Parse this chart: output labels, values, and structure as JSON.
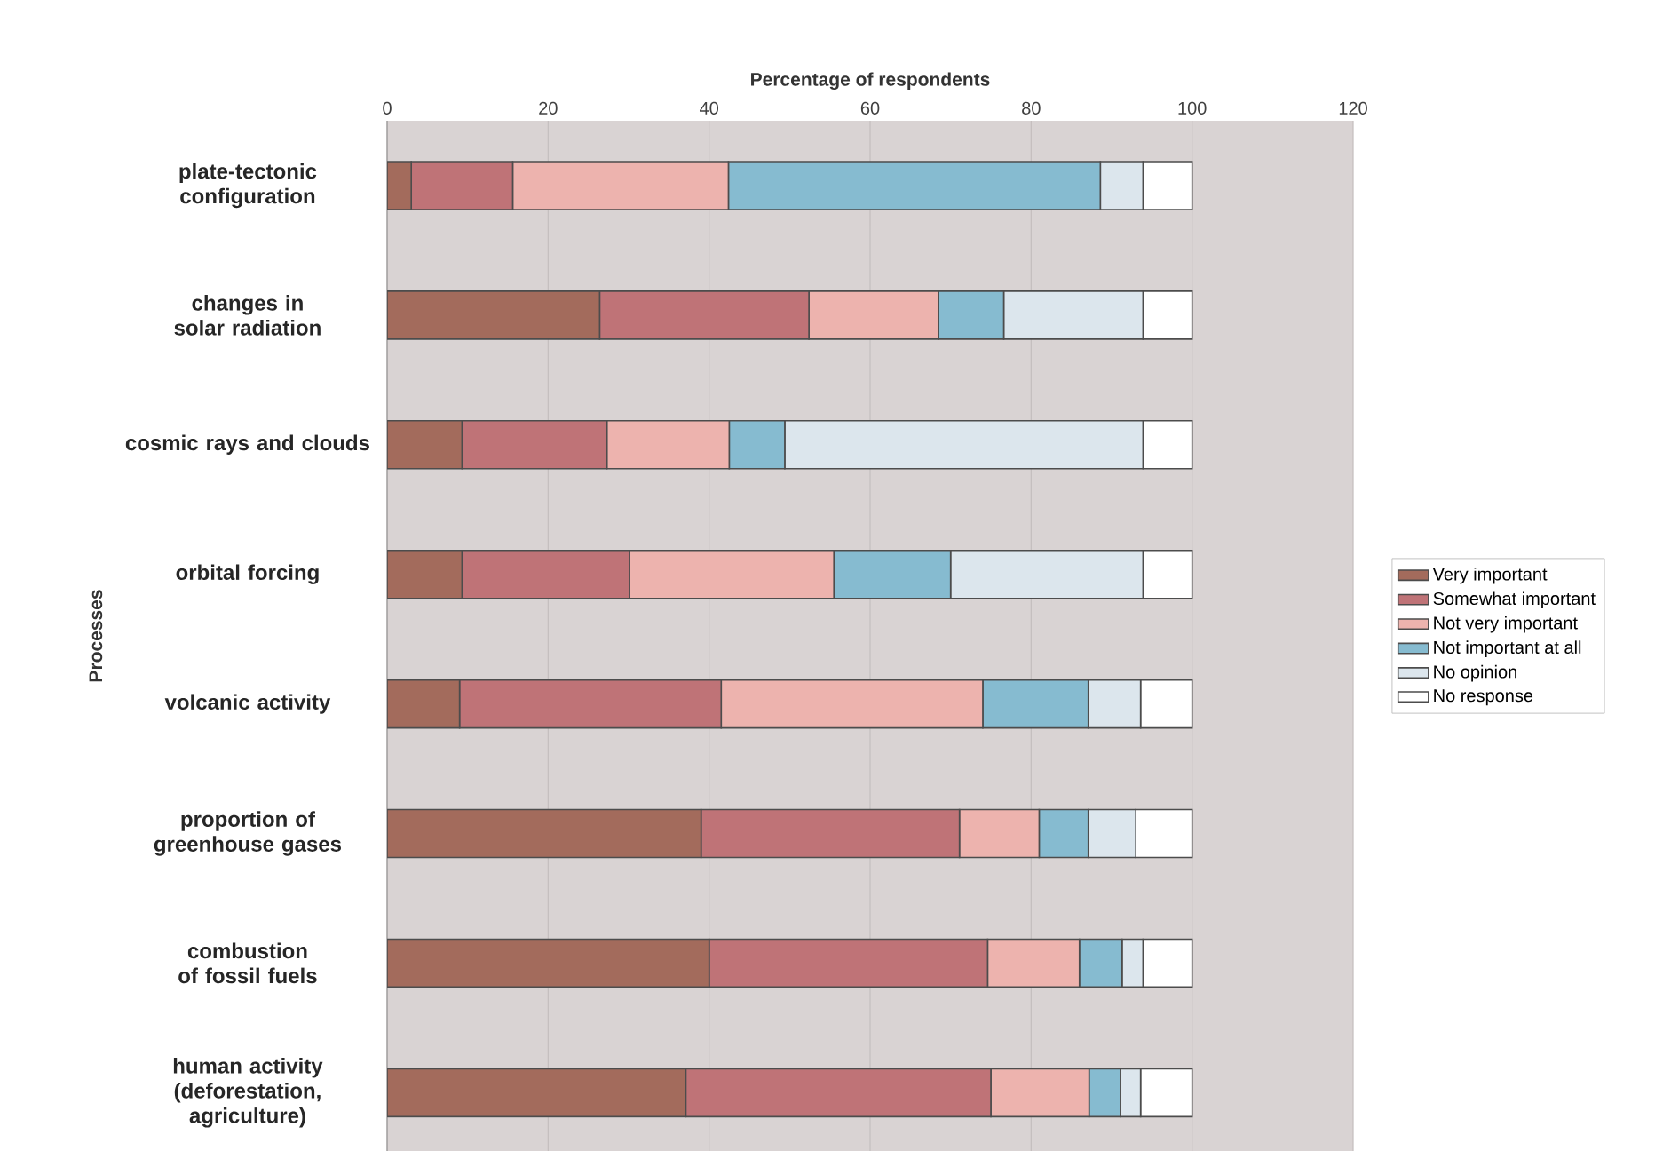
{
  "chart_data": {
    "type": "bar",
    "orientation": "horizontal",
    "stacked": true,
    "xlabel": "Percentage of respondents",
    "ylabel": "Processes",
    "categories": [
      "plate-tectonic configuration",
      "changes in solar radiation",
      "cosmic rays and clouds",
      "orbital forcing",
      "volcanic activity",
      "proportion of greenhouse gases",
      "combustion of fossil fuels",
      "human activity (deforestation, agriculture)"
    ],
    "series": [
      {
        "name": "Very important",
        "color": "#a36b5c",
        "values": [
          3.0,
          26.4,
          9.3,
          9.3,
          9.0,
          39.0,
          40.0,
          37.1
        ]
      },
      {
        "name": "Somewhat important",
        "color": "#bf7377",
        "values": [
          12.6,
          26.0,
          18.0,
          20.8,
          32.5,
          32.1,
          34.6,
          37.9
        ]
      },
      {
        "name": "Not very important",
        "color": "#edb3ae",
        "values": [
          26.8,
          16.1,
          15.2,
          25.4,
          32.5,
          9.9,
          11.4,
          12.2
        ]
      },
      {
        "name": "Not important at all",
        "color": "#86bbd0",
        "values": [
          46.2,
          8.1,
          6.9,
          14.5,
          13.1,
          6.1,
          5.3,
          3.9
        ]
      },
      {
        "name": "No opinion",
        "color": "#dce6ed",
        "values": [
          5.3,
          17.3,
          44.5,
          23.9,
          6.5,
          5.9,
          2.6,
          2.5
        ]
      },
      {
        "name": "No response",
        "color": "#ffffff",
        "values": [
          6.1,
          6.1,
          6.1,
          6.1,
          6.4,
          7.0,
          6.1,
          6.4
        ]
      }
    ],
    "xlim": [
      0,
      120
    ],
    "xticks": [
      0,
      20,
      40,
      60,
      80,
      100,
      120
    ],
    "grid": "x",
    "legend": "right"
  }
}
